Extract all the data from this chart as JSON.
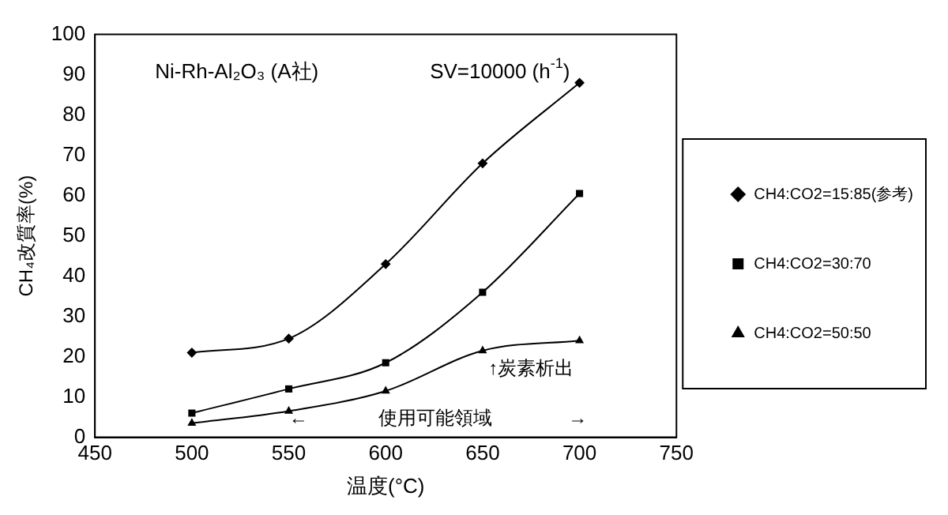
{
  "chart_data": {
    "type": "line",
    "title": "Ni-Rh-Al₂O₃ (A社)",
    "subtitle": "SV=10000 (h$^{-1}$)",
    "xlabel": "温度(°C)",
    "ylabel": "CH₄改質率(%)",
    "x": [
      500,
      550,
      600,
      650,
      700
    ],
    "series": [
      {
        "name": "CH4:CO2=15:85(参考)",
        "color": "#000000",
        "marker": "diamond",
        "values": [
          21,
          24.5,
          43,
          68,
          88
        ]
      },
      {
        "name": "CH4:CO2=30:70",
        "color": "#000000",
        "marker": "square",
        "values": [
          6,
          12,
          18.5,
          36,
          60.5
        ]
      },
      {
        "name": "CH4:CO2=50:50",
        "color": "#000000",
        "marker": "triangle",
        "values": [
          3.5,
          6.5,
          11.5,
          21.5,
          24
        ]
      }
    ],
    "annotations": [
      "↑炭素析出",
      "←",
      "使用可能領域",
      "→"
    ],
    "xlim": [
      450,
      750
    ],
    "xticks": [
      450,
      500,
      550,
      600,
      650,
      700,
      750
    ],
    "ylim": [
      0,
      100
    ],
    "yticks": [
      0,
      10,
      20,
      30,
      40,
      50,
      60,
      70,
      80,
      90,
      100
    ],
    "grid": false,
    "legend": "right"
  }
}
